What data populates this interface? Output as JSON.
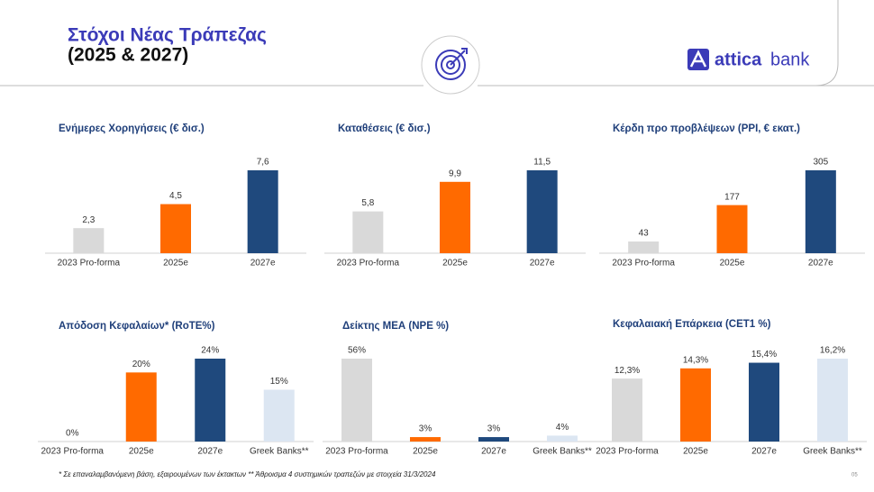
{
  "header": {
    "title_line1": "Στόχοι Νέας Τράπεζας",
    "title_line2": "(2025 & 2027)"
  },
  "logo": [
    "attica",
    "bank"
  ],
  "footnote": "* Σε επαναλαμβανόμενη βάση, εξαιρουμένων των έκτακτων   ** Άθροισμα 4 συστημικών τραπεζών με στοιχεία 31/3/2024",
  "page_number": "05",
  "chart_data": [
    {
      "type": "bar",
      "title": "Ενήμερες Χορηγήσεις (€ δισ.)",
      "categories": [
        "2023 Pro-forma",
        "2025e",
        "2027e"
      ],
      "values": [
        2.3,
        4.5,
        7.6
      ],
      "value_labels": [
        "2,3",
        "4,5",
        "7,6"
      ],
      "colors": [
        "#d9d9d9",
        "#ff6a00",
        "#1f497d"
      ]
    },
    {
      "type": "bar",
      "title": "Καταθέσεις (€ δισ.)",
      "categories": [
        "2023 Pro-forma",
        "2025e",
        "2027e"
      ],
      "values": [
        5.8,
        9.9,
        11.5
      ],
      "value_labels": [
        "5,8",
        "9,9",
        "11,5"
      ],
      "colors": [
        "#d9d9d9",
        "#ff6a00",
        "#1f497d"
      ]
    },
    {
      "type": "bar",
      "title": "Κέρδη προ προβλέψεων (PPI, € εκατ.)",
      "categories": [
        "2023 Pro-forma",
        "2025e",
        "2027e"
      ],
      "values": [
        43,
        177,
        305
      ],
      "colors": [
        "#d9d9d9",
        "#ff6a00",
        "#1f497d"
      ]
    },
    {
      "type": "bar",
      "title": "Απόδοση Κεφαλαίων* (RoTE%)",
      "categories": [
        "2023 Pro-forma",
        "2025e",
        "2027e",
        "Greek Banks**"
      ],
      "values": [
        0,
        20,
        24,
        15
      ],
      "value_labels": [
        "0%",
        "20%",
        "24%",
        "15%"
      ],
      "colors": [
        "#d9d9d9",
        "#ff6a00",
        "#1f497d",
        "#dce6f2"
      ]
    },
    {
      "type": "bar",
      "title": "Δείκτης ΜΕΑ (NPE %)",
      "categories": [
        "2023 Pro-forma",
        "2025e",
        "2027e",
        "Greek Banks**"
      ],
      "values": [
        56,
        3,
        3,
        4
      ],
      "value_labels": [
        "56%",
        "3%",
        "3%",
        "4%"
      ],
      "colors": [
        "#d9d9d9",
        "#ff6a00",
        "#1f497d",
        "#dce6f2"
      ]
    },
    {
      "type": "bar",
      "title": "Κεφαλαιακή Επάρκεια (CET1 %)",
      "categories": [
        "2023 Pro-forma",
        "2025e",
        "2027e",
        "Greek Banks**"
      ],
      "values": [
        12.3,
        14.3,
        15.4,
        16.2
      ],
      "value_labels": [
        "12,3%",
        "14,3%",
        "15,4%",
        "16,2%"
      ],
      "colors": [
        "#d9d9d9",
        "#ff6a00",
        "#1f497d",
        "#dce6f2"
      ]
    }
  ]
}
